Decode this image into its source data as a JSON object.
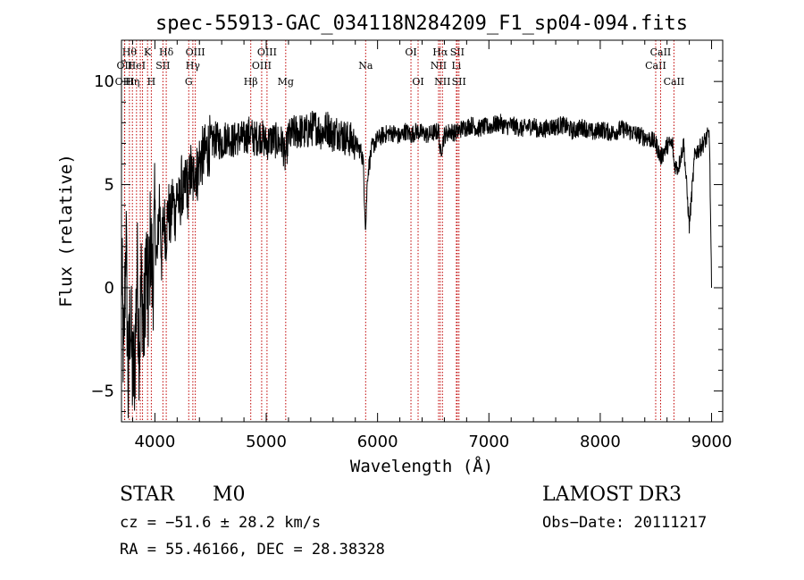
{
  "chart_data": {
    "type": "line",
    "title": "spec-55913-GAC_034118N284209_F1_sp04-094.fits",
    "xlabel": "Wavelength (Å)",
    "ylabel": "Flux (relative)",
    "xlim": [
      3700,
      9100
    ],
    "ylim": [
      -6.5,
      12.0
    ],
    "x_ticks": [
      4000,
      5000,
      6000,
      7000,
      8000,
      9000
    ],
    "y_ticks": [
      -5,
      0,
      5,
      10
    ],
    "x_tick_labels": [
      "4000",
      "5000",
      "6000",
      "7000",
      "8000",
      "9000"
    ],
    "y_tick_labels": [
      "−5",
      "0",
      "5",
      "10"
    ],
    "series": [
      {
        "name": "flux",
        "x": [
          3700,
          3720,
          3740,
          3760,
          3780,
          3800,
          3820,
          3840,
          3860,
          3880,
          3900,
          3920,
          3940,
          3960,
          3980,
          4000,
          4020,
          4040,
          4060,
          4080,
          4100,
          4120,
          4140,
          4160,
          4180,
          4200,
          4220,
          4240,
          4260,
          4280,
          4300,
          4320,
          4340,
          4360,
          4380,
          4400,
          4450,
          4500,
          4550,
          4600,
          4650,
          4700,
          4750,
          4800,
          4850,
          4900,
          4950,
          5000,
          5050,
          5100,
          5150,
          5167,
          5200,
          5250,
          5300,
          5350,
          5400,
          5450,
          5500,
          5550,
          5600,
          5650,
          5700,
          5750,
          5800,
          5850,
          5870,
          5893,
          5910,
          5950,
          6000,
          6050,
          6100,
          6150,
          6200,
          6250,
          6300,
          6350,
          6400,
          6450,
          6500,
          6550,
          6563,
          6600,
          6650,
          6700,
          6750,
          6800,
          6850,
          6900,
          6950,
          7000,
          7050,
          7100,
          7150,
          7200,
          7250,
          7300,
          7350,
          7400,
          7450,
          7500,
          7550,
          7600,
          7650,
          7700,
          7750,
          7800,
          7850,
          7900,
          7950,
          8000,
          8050,
          8100,
          8150,
          8200,
          8250,
          8300,
          8350,
          8400,
          8450,
          8500,
          8542,
          8600,
          8650,
          8662,
          8700,
          8750,
          8800,
          8850,
          8900,
          8950,
          8980,
          9000
        ],
        "y": [
          1.5,
          -4.0,
          3.0,
          -5.0,
          -1.0,
          -4.5,
          -3.5,
          1.0,
          -3.0,
          0.5,
          -2.5,
          1.5,
          -1.0,
          2.5,
          0.0,
          3.5,
          1.0,
          4.5,
          1.5,
          3.5,
          2.5,
          4.0,
          3.0,
          4.5,
          3.5,
          4.8,
          3.8,
          5.0,
          4.2,
          5.5,
          4.5,
          5.8,
          5.0,
          6.0,
          5.5,
          6.2,
          6.5,
          7.0,
          7.2,
          7.0,
          7.4,
          7.1,
          7.3,
          7.2,
          7.5,
          7.2,
          7.4,
          7.0,
          7.2,
          7.1,
          7.0,
          6.2,
          7.3,
          7.5,
          7.6,
          7.5,
          7.7,
          7.8,
          7.5,
          7.8,
          7.4,
          7.6,
          7.3,
          7.2,
          7.0,
          6.6,
          6.2,
          2.8,
          5.5,
          6.8,
          7.2,
          7.4,
          7.5,
          7.5,
          7.3,
          7.6,
          7.4,
          7.6,
          7.5,
          7.4,
          7.5,
          7.6,
          6.5,
          7.4,
          7.6,
          7.5,
          7.7,
          7.8,
          7.9,
          7.7,
          7.8,
          7.8,
          7.9,
          8.0,
          7.8,
          7.9,
          7.8,
          7.7,
          7.8,
          7.9,
          7.6,
          7.7,
          7.8,
          7.8,
          7.9,
          7.8,
          7.6,
          7.7,
          7.8,
          7.6,
          7.5,
          7.7,
          7.6,
          7.5,
          7.6,
          7.7,
          7.6,
          7.5,
          7.4,
          7.3,
          7.2,
          7.0,
          6.3,
          6.9,
          7.0,
          6.0,
          5.8,
          7.0,
          3.0,
          6.5,
          6.8,
          7.2,
          7.5,
          0.0
        ],
        "color": "#000000"
      }
    ],
    "line_markers": [
      {
        "wave": 3771,
        "label": "Hθ",
        "row": 1
      },
      {
        "wave": 3727,
        "label": "OII",
        "row": 2
      },
      {
        "wave": 3729,
        "label": "OIII",
        "row": 3
      },
      {
        "wave": 3798,
        "label": "Hη",
        "row": 3
      },
      {
        "wave": 3835,
        "label": "HeI",
        "row": 2
      },
      {
        "wave": 3869,
        "label": "",
        "row": 0
      },
      {
        "wave": 3889,
        "label": "",
        "row": 0
      },
      {
        "wave": 3934,
        "label": "K",
        "row": 1
      },
      {
        "wave": 3968,
        "label": "H",
        "row": 3
      },
      {
        "wave": 4072,
        "label": "SII",
        "row": 2
      },
      {
        "wave": 4102,
        "label": "Hδ",
        "row": 1
      },
      {
        "wave": 4304,
        "label": "G",
        "row": 3
      },
      {
        "wave": 4341,
        "label": "Hγ",
        "row": 2
      },
      {
        "wave": 4363,
        "label": "OIII",
        "row": 1
      },
      {
        "wave": 4861,
        "label": "Hβ",
        "row": 3
      },
      {
        "wave": 4959,
        "label": "OIII",
        "row": 2
      },
      {
        "wave": 5007,
        "label": "OIII",
        "row": 1
      },
      {
        "wave": 5175,
        "label": "Mg",
        "row": 3
      },
      {
        "wave": 5893,
        "label": "Na",
        "row": 2
      },
      {
        "wave": 6300,
        "label": "OI",
        "row": 1
      },
      {
        "wave": 6364,
        "label": "OI",
        "row": 3
      },
      {
        "wave": 6548,
        "label": "NII",
        "row": 2
      },
      {
        "wave": 6563,
        "label": "Hα",
        "row": 1
      },
      {
        "wave": 6583,
        "label": "NII",
        "row": 3
      },
      {
        "wave": 6708,
        "label": "Li",
        "row": 2
      },
      {
        "wave": 6716,
        "label": "SII",
        "row": 1
      },
      {
        "wave": 6731,
        "label": "SII",
        "row": 3
      },
      {
        "wave": 8498,
        "label": "CaII",
        "row": 2
      },
      {
        "wave": 8542,
        "label": "CaII",
        "row": 1
      },
      {
        "wave": 8662,
        "label": "CaII",
        "row": 3
      }
    ]
  },
  "info": {
    "class_label": "STAR",
    "subclass": "M0",
    "survey": "LAMOST DR3",
    "cz": "cz = −51.6 ± 28.2 km/s",
    "obs_date": "Obs−Date: 20111217",
    "coords": "RA =  55.46166, DEC =  28.38328"
  },
  "colors": {
    "spectrum": "#000000",
    "marker_line": "#c00000",
    "axis": "#000000",
    "background": "#ffffff"
  }
}
